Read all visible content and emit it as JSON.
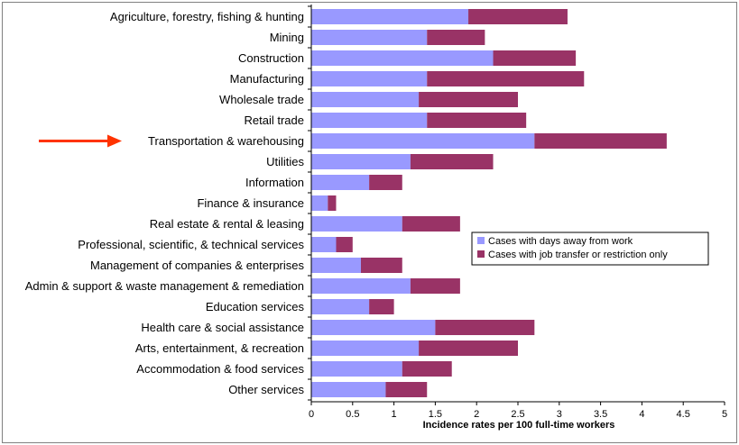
{
  "chart_data": {
    "type": "bar",
    "orientation": "horizontal",
    "stacked": true,
    "categories": [
      "Agriculture, forestry, fishing & hunting",
      "Mining",
      "Construction",
      "Manufacturing",
      "Wholesale trade",
      "Retail trade",
      "Transportation & warehousing",
      "Utilities",
      "Information",
      "Finance & insurance",
      "Real estate & rental & leasing",
      "Professional, scientific, & technical services",
      "Management of companies & enterprises",
      "Admin & support & waste management & remediation",
      "Education services",
      "Health care & social assistance",
      "Arts, entertainment, & recreation",
      "Accommodation & food services",
      "Other services"
    ],
    "series": [
      {
        "name": "Cases with days away from work",
        "color": "#9999ff",
        "values": [
          1.9,
          1.4,
          2.2,
          1.4,
          1.3,
          1.4,
          2.7,
          1.2,
          0.7,
          0.2,
          1.1,
          0.3,
          0.6,
          1.2,
          0.7,
          1.5,
          1.3,
          1.1,
          0.9
        ]
      },
      {
        "name": "Cases with job transfer or restriction only",
        "color": "#993366",
        "values": [
          1.2,
          0.7,
          1.0,
          1.9,
          1.2,
          1.2,
          1.6,
          1.0,
          0.4,
          0.1,
          0.7,
          0.2,
          0.5,
          0.6,
          0.3,
          1.2,
          1.2,
          0.6,
          0.5
        ]
      }
    ],
    "xlabel": "Incidence rates per 100 full-time workers",
    "ylabel": "",
    "xlim": [
      0,
      5
    ],
    "xticks": [
      0,
      0.5,
      1,
      1.5,
      2,
      2.5,
      3,
      3.5,
      4,
      4.5,
      5
    ],
    "xtick_labels": [
      "0",
      "0.5",
      "1",
      "1.5",
      "2",
      "2.5",
      "3",
      "3.5",
      "4",
      "4.5",
      "5"
    ],
    "grid": false,
    "legend_position": "center-right",
    "highlighted_category": "Transportation & warehousing",
    "highlight_marker": "red-arrow",
    "highlight_color": "#ff3300"
  }
}
